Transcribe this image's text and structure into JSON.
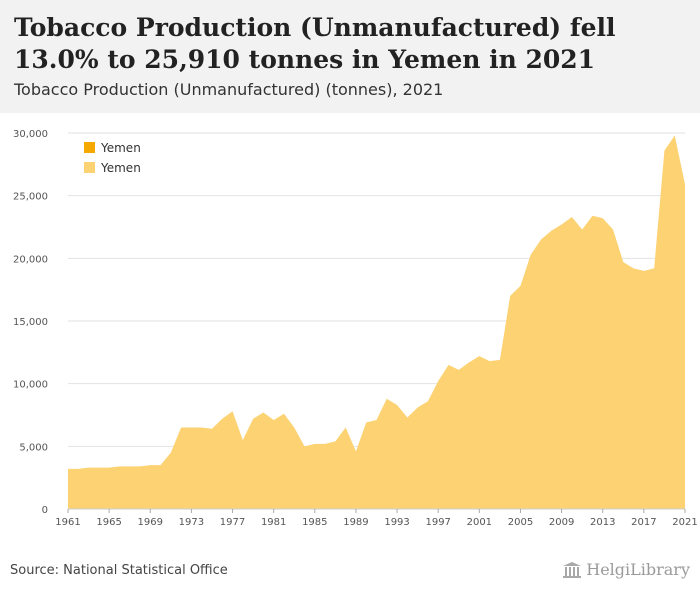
{
  "header": {
    "title": "Tobacco Production (Unmanufactured) fell 13.0% to 25,910 tonnes in Yemen in 2021",
    "subtitle": "Tobacco Production (Unmanufactured) (tonnes), 2021"
  },
  "footer": {
    "source": "Source: National Statistical Office",
    "brand": "HelgiLibrary"
  },
  "colors": {
    "area": "#fcd273",
    "legend_primary": "#f5a900",
    "grid": "#e2e2e2",
    "axis_text": "#555555",
    "header_bg": "#f2f2f2"
  },
  "chart_data": {
    "type": "area",
    "x": [
      1961,
      1962,
      1963,
      1964,
      1965,
      1966,
      1967,
      1968,
      1969,
      1970,
      1971,
      1972,
      1973,
      1974,
      1975,
      1976,
      1977,
      1978,
      1979,
      1980,
      1981,
      1982,
      1983,
      1984,
      1985,
      1986,
      1987,
      1988,
      1989,
      1990,
      1991,
      1992,
      1993,
      1994,
      1995,
      1996,
      1997,
      1998,
      1999,
      2000,
      2001,
      2002,
      2003,
      2004,
      2005,
      2006,
      2007,
      2008,
      2009,
      2010,
      2011,
      2012,
      2013,
      2014,
      2015,
      2016,
      2017,
      2018,
      2019,
      2020,
      2021
    ],
    "series": [
      {
        "name": "Yemen",
        "values": [
          3200,
          3200,
          3300,
          3300,
          3300,
          3400,
          3400,
          3400,
          3500,
          3500,
          4500,
          6500,
          6500,
          6500,
          6400,
          7200,
          7800,
          5500,
          7200,
          7700,
          7100,
          7600,
          6500,
          5000,
          5200,
          5200,
          5400,
          6500,
          4600,
          6900,
          7100,
          8800,
          8300,
          7300,
          8100,
          8600,
          10200,
          11500,
          11100,
          11700,
          12200,
          11800,
          11900,
          17000,
          17800,
          20300,
          21500,
          22200,
          22700,
          23300,
          22300,
          23400,
          23200,
          22300,
          19700,
          19200,
          19000,
          19200,
          28600,
          29800,
          25910
        ]
      }
    ],
    "legend": [
      "Yemen",
      "Yemen"
    ],
    "xticks": [
      "1961",
      "1965",
      "1969",
      "1973",
      "1977",
      "1981",
      "1985",
      "1989",
      "1993",
      "1997",
      "2001",
      "2005",
      "2009",
      "2013",
      "2017",
      "2021"
    ],
    "yticks": [
      "0",
      "5,000",
      "10,000",
      "15,000",
      "20,000",
      "25,000",
      "30,000"
    ],
    "ylim": [
      0,
      30000
    ],
    "xlim": [
      1961,
      2021
    ],
    "grid": "horizontal",
    "legend_position": "top-left"
  }
}
